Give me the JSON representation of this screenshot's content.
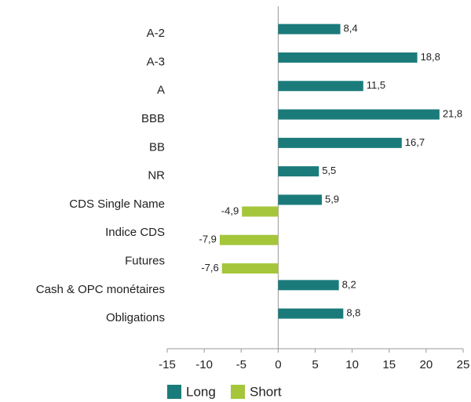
{
  "chart_data": {
    "type": "hbar",
    "categories": [
      "A-2",
      "A-3",
      "A",
      "BBB",
      "BB",
      "NR",
      "CDS Single Name",
      "Indice CDS",
      "Futures",
      "Cash & OPC monétaires",
      "Obligations"
    ],
    "series": [
      {
        "name": "Long",
        "color": "#1b7b7b",
        "values": [
          8.4,
          18.8,
          11.5,
          21.8,
          16.7,
          5.5,
          5.9,
          null,
          null,
          8.2,
          8.8
        ],
        "value_labels": [
          "8,4",
          "18,8",
          "11,5",
          "21,8",
          "16,7",
          "5,5",
          "5,9",
          null,
          null,
          "8,2",
          "8,8"
        ]
      },
      {
        "name": "Short",
        "color": "#a5c63b",
        "values": [
          null,
          null,
          null,
          null,
          null,
          null,
          -4.9,
          -7.9,
          -7.6,
          null,
          null
        ],
        "value_labels": [
          null,
          null,
          null,
          null,
          null,
          null,
          "-4,9",
          "-7,9",
          "-7,6",
          null,
          null
        ]
      }
    ],
    "xlim": [
      -15,
      25
    ],
    "xticks": [
      -15,
      -10,
      -5,
      0,
      5,
      10,
      15,
      20,
      25
    ],
    "legend": "bottom"
  }
}
